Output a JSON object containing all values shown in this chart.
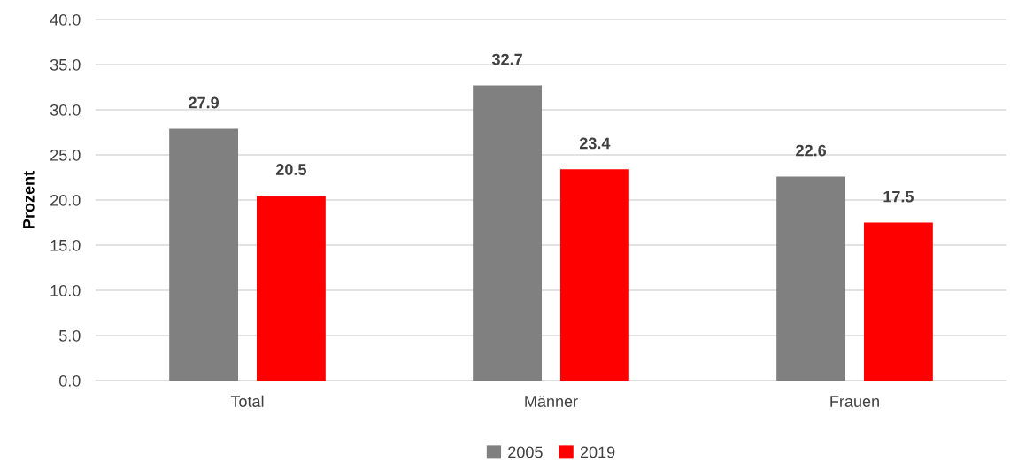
{
  "chart_data": {
    "type": "bar",
    "ylabel": "Prozent",
    "categories": [
      "Total",
      "Männer",
      "Frauen"
    ],
    "series": [
      {
        "name": "2005",
        "color": "#808080",
        "values": [
          27.9,
          32.7,
          22.6
        ]
      },
      {
        "name": "2019",
        "color": "#ff0000",
        "values": [
          20.5,
          23.4,
          17.5
        ]
      }
    ],
    "ylim": [
      0,
      40
    ],
    "yticks": [
      {
        "value": 0,
        "label": "0.0"
      },
      {
        "value": 5,
        "label": "5.0"
      },
      {
        "value": 10,
        "label": "10.0"
      },
      {
        "value": 15,
        "label": "15.0"
      },
      {
        "value": 20,
        "label": "20.0"
      },
      {
        "value": 25,
        "label": "25.0"
      },
      {
        "value": 30,
        "label": "30.0"
      },
      {
        "value": 35,
        "label": "35.0"
      },
      {
        "value": 40,
        "label": "40.0"
      }
    ],
    "grid": "y",
    "legend": "bottom",
    "data_labels": true
  }
}
